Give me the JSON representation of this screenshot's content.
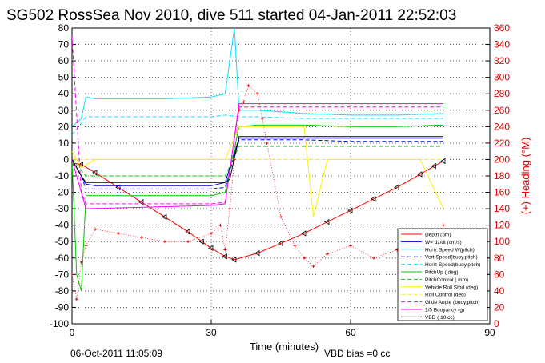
{
  "title": "SG502 RossSea Nov 2010, dive 511 started 04-Jan-2011 22:52:03",
  "footer_left": "06-Oct-2011 11:05:09",
  "footer_right": "VBD bias =0 cc",
  "colors": {
    "depth": "#ff0000",
    "heading": "#e00000",
    "w": "#0000cc",
    "hspd_w": "#00e0ff",
    "vspd": "#0000cc",
    "hspd_b": "#00e0ff",
    "pitch": "#00cc00",
    "pitchctl": "#00cc00",
    "roll": "#ffee00",
    "rollctl": "#ffee00",
    "glide": "#ff00ff",
    "buoy": "#ff00ff",
    "vbd": "#000000"
  },
  "chart_data": {
    "type": "line",
    "title": "SG502 RossSea Nov 2010, dive 511 started 04-Jan-2011 22:52:03",
    "xlabel": "Time (minutes)",
    "ylabel_right": "(+) Heading (°M)",
    "xlim": [
      0,
      90
    ],
    "ylim": [
      -100,
      80
    ],
    "ylim_right": [
      0,
      360
    ],
    "x_ticks": [
      "0",
      "30",
      "60",
      "90"
    ],
    "y_ticks": [
      "80",
      "70",
      "60",
      "50",
      "40",
      "30",
      "20",
      "10",
      "0",
      "-10",
      "-20",
      "-30",
      "-40",
      "-50",
      "-60",
      "-70",
      "-80",
      "-90",
      "-100"
    ],
    "y_ticks_right": [
      "360",
      "340",
      "320",
      "300",
      "280",
      "260",
      "240",
      "220",
      "200",
      "180",
      "160",
      "140",
      "120",
      "100",
      "80",
      "60",
      "40",
      "20",
      "0"
    ],
    "grid": true,
    "legend_position": "bottom-right",
    "legend": [
      "Depth (5m)",
      "W= dz/dt (cm/s)",
      "Horiz Speed W(pitch)",
      "Vert Speed(buoy,pitch)",
      "Horiz Speed(buoy,pitch)",
      "PitchUp ( deg)",
      "PitchControl ( mm)",
      "Vehicle Roll Stbd (deg)",
      "Roll Control (deg)",
      "Glide Angle (buoy,pitch)",
      "1/5 Buoyancy (g)",
      "VBD ( 10 cc)"
    ],
    "series": [
      {
        "name": "Depth (5m)",
        "x": [
          0,
          2,
          5,
          10,
          15,
          20,
          25,
          28,
          30,
          33,
          35,
          40,
          45,
          50,
          55,
          60,
          65,
          70,
          75,
          78,
          80
        ],
        "y": [
          -2,
          -3,
          -8,
          -17,
          -26,
          -35,
          -44,
          -50,
          -54,
          -59,
          -61,
          -57,
          -51,
          -45,
          -38,
          -31,
          -24,
          -17,
          -9,
          -4,
          -1
        ]
      },
      {
        "name": "W= dz/dt (cm/s)",
        "x": [
          0,
          1,
          2,
          3,
          5,
          10,
          20,
          30,
          33,
          36,
          40,
          50,
          60,
          70,
          80
        ],
        "y": [
          0,
          -5,
          -10,
          -15,
          -16,
          -16,
          -16,
          -16,
          -14,
          13,
          13,
          13,
          13,
          13,
          13
        ]
      },
      {
        "name": "Horiz Speed W(pitch)",
        "x": [
          0,
          2,
          3,
          5,
          10,
          20,
          30,
          33,
          35,
          36,
          40,
          50,
          60,
          70,
          80
        ],
        "y": [
          20,
          25,
          38,
          37,
          37,
          37,
          38,
          40,
          80,
          30,
          30,
          28,
          27,
          27,
          28
        ]
      },
      {
        "name": "Vert Speed(buoy,pitch)",
        "x": [
          0,
          2,
          3,
          5,
          10,
          20,
          30,
          33,
          36,
          40,
          50,
          60,
          70,
          80
        ],
        "y": [
          0,
          -10,
          -18,
          -18,
          -18,
          -18,
          -18,
          -17,
          12,
          12,
          12,
          11,
          11,
          11
        ]
      },
      {
        "name": "Horiz Speed(buoy,pitch)",
        "x": [
          0,
          2,
          3,
          5,
          10,
          20,
          30,
          33,
          36,
          40,
          50,
          60,
          70,
          80
        ],
        "y": [
          15,
          22,
          26,
          26,
          26,
          26,
          26,
          27,
          26,
          26,
          25,
          25,
          25,
          25
        ]
      },
      {
        "name": "PitchUp ( deg)",
        "x": [
          0,
          1,
          2,
          3,
          5,
          10,
          20,
          30,
          33,
          36,
          40,
          50,
          60,
          70,
          80
        ],
        "y": [
          0,
          -70,
          -80,
          -22,
          -22,
          -22,
          -22,
          -22,
          -20,
          20,
          21,
          21,
          20,
          20,
          21
        ]
      },
      {
        "name": "PitchControl ( mm)",
        "x": [
          0,
          3,
          5,
          30,
          33,
          36,
          80
        ],
        "y": [
          0,
          -10,
          -10,
          -10,
          -10,
          8,
          8
        ]
      },
      {
        "name": "Vehicle Roll Stbd (deg)",
        "x": [
          0,
          2,
          5,
          10,
          15,
          20,
          25,
          30,
          33,
          36,
          40,
          45,
          50,
          52,
          55,
          60,
          65,
          70,
          75,
          80
        ],
        "y": [
          5,
          -5,
          0,
          0,
          0,
          0,
          0,
          0,
          0,
          20,
          20,
          20,
          20,
          -35,
          0,
          0,
          0,
          0,
          0,
          -30
        ]
      },
      {
        "name": "Roll Control (deg)",
        "x": [
          0,
          3,
          33,
          36,
          80
        ],
        "y": [
          0,
          0,
          0,
          0,
          0
        ]
      },
      {
        "name": "Glide Angle (buoy,pitch)",
        "x": [
          0,
          2,
          3,
          5,
          10,
          20,
          30,
          33,
          36,
          40,
          50,
          60,
          70,
          80
        ],
        "y": [
          75,
          -20,
          -27,
          -27,
          -27,
          -27,
          -27,
          -26,
          32,
          32,
          32,
          32,
          32,
          32
        ]
      },
      {
        "name": "1/5 Buoyancy (g)",
        "x": [
          0,
          2,
          3,
          30,
          33,
          36,
          80
        ],
        "y": [
          0,
          -20,
          -30,
          -28,
          -27,
          34,
          34
        ]
      },
      {
        "name": "VBD ( 10 cc)",
        "x": [
          0,
          2,
          3,
          33,
          34,
          36,
          80
        ],
        "y": [
          0,
          -10,
          -14,
          -14,
          -12,
          14,
          14
        ]
      },
      {
        "name": "Heading",
        "x": [
          0,
          1,
          2,
          3,
          5,
          10,
          15,
          20,
          25,
          30,
          32,
          33,
          34,
          35,
          36,
          37,
          38,
          40,
          41,
          42,
          45,
          48,
          50,
          52,
          55,
          60,
          65,
          70,
          75,
          78,
          80
        ],
        "y_right": [
          60,
          30,
          75,
          95,
          115,
          110,
          105,
          100,
          100,
          110,
          120,
          90,
          140,
          200,
          260,
          270,
          290,
          280,
          250,
          220,
          130,
          95,
          80,
          70,
          85,
          95,
          80,
          90,
          85,
          100,
          120
        ]
      }
    ]
  }
}
